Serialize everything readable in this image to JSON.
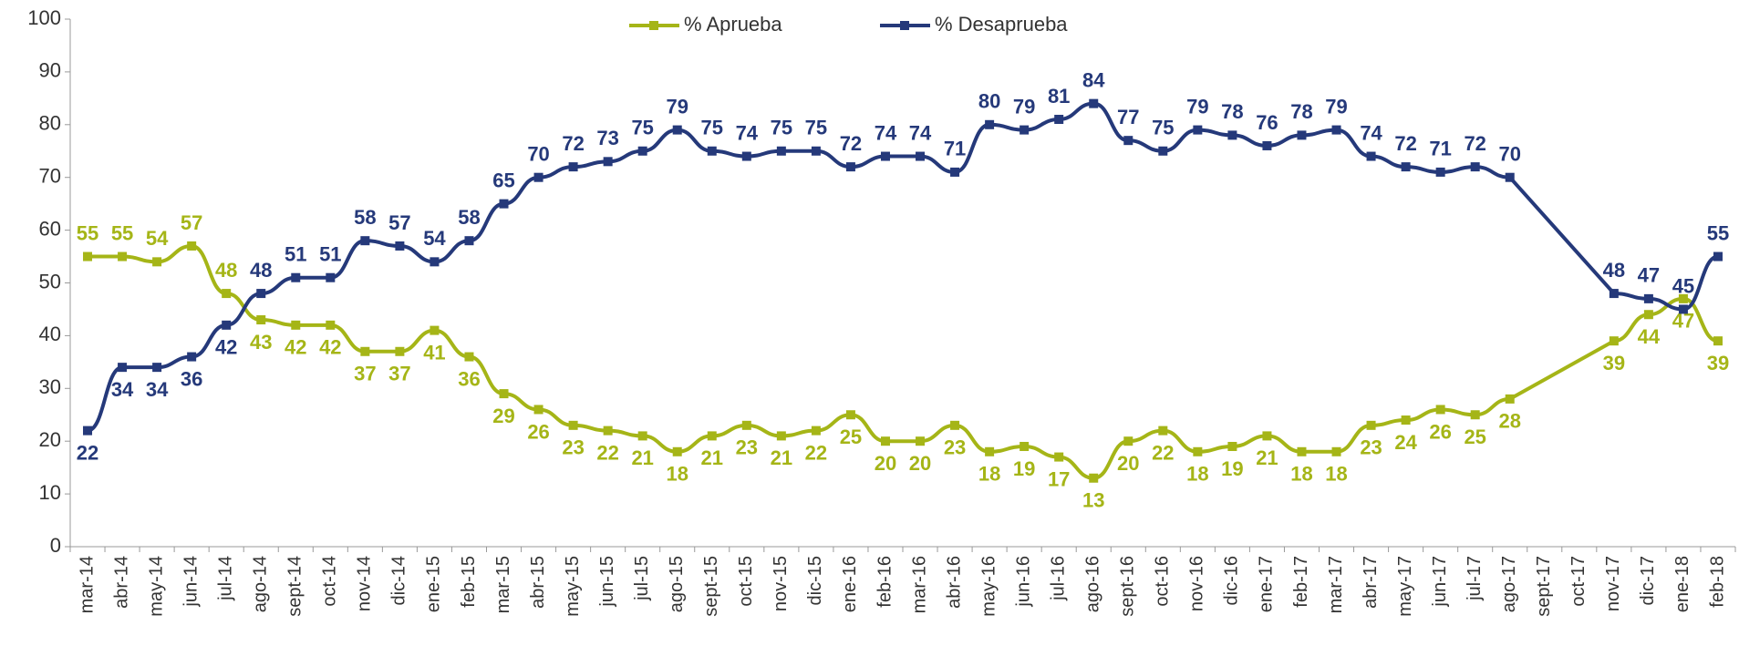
{
  "chart_data": {
    "type": "line",
    "categories": [
      "mar-14",
      "abr-14",
      "may-14",
      "jun-14",
      "jul-14",
      "ago-14",
      "sept-14",
      "oct-14",
      "nov-14",
      "dic-14",
      "ene-15",
      "feb-15",
      "mar-15",
      "abr-15",
      "may-15",
      "jun-15",
      "jul-15",
      "ago-15",
      "sept-15",
      "oct-15",
      "nov-15",
      "dic-15",
      "ene-16",
      "feb-16",
      "mar-16",
      "abr-16",
      "may-16",
      "jun-16",
      "jul-16",
      "ago-16",
      "sept-16",
      "oct-16",
      "nov-16",
      "dic-16",
      "ene-17",
      "feb-17",
      "mar-17",
      "abr-17",
      "may-17",
      "jun-17",
      "jul-17",
      "ago-17",
      "sept-17",
      "oct-17",
      "nov-17",
      "dic-17",
      "ene-18",
      "feb-18"
    ],
    "series": [
      {
        "name": "% Aprueba",
        "color": "#a5b517",
        "values": [
          55,
          55,
          54,
          57,
          48,
          43,
          42,
          42,
          37,
          37,
          41,
          36,
          29,
          26,
          23,
          22,
          21,
          18,
          21,
          23,
          21,
          22,
          25,
          20,
          20,
          23,
          18,
          19,
          17,
          13,
          20,
          22,
          18,
          19,
          21,
          18,
          18,
          23,
          24,
          26,
          25,
          28,
          null,
          null,
          39,
          44,
          47,
          39
        ]
      },
      {
        "name": "% Desaprueba",
        "color": "#25397a",
        "values": [
          22,
          34,
          34,
          36,
          42,
          48,
          51,
          51,
          58,
          57,
          54,
          58,
          65,
          70,
          72,
          73,
          75,
          79,
          75,
          74,
          75,
          75,
          72,
          74,
          74,
          71,
          80,
          79,
          81,
          84,
          77,
          75,
          79,
          78,
          76,
          78,
          79,
          74,
          72,
          71,
          72,
          70,
          null,
          null,
          48,
          47,
          45,
          55
        ]
      }
    ],
    "ylim": [
      0,
      100
    ],
    "yticks": [
      0,
      10,
      20,
      30,
      40,
      50,
      60,
      70,
      80,
      90,
      100
    ],
    "span_gaps": true,
    "legend": "top"
  }
}
